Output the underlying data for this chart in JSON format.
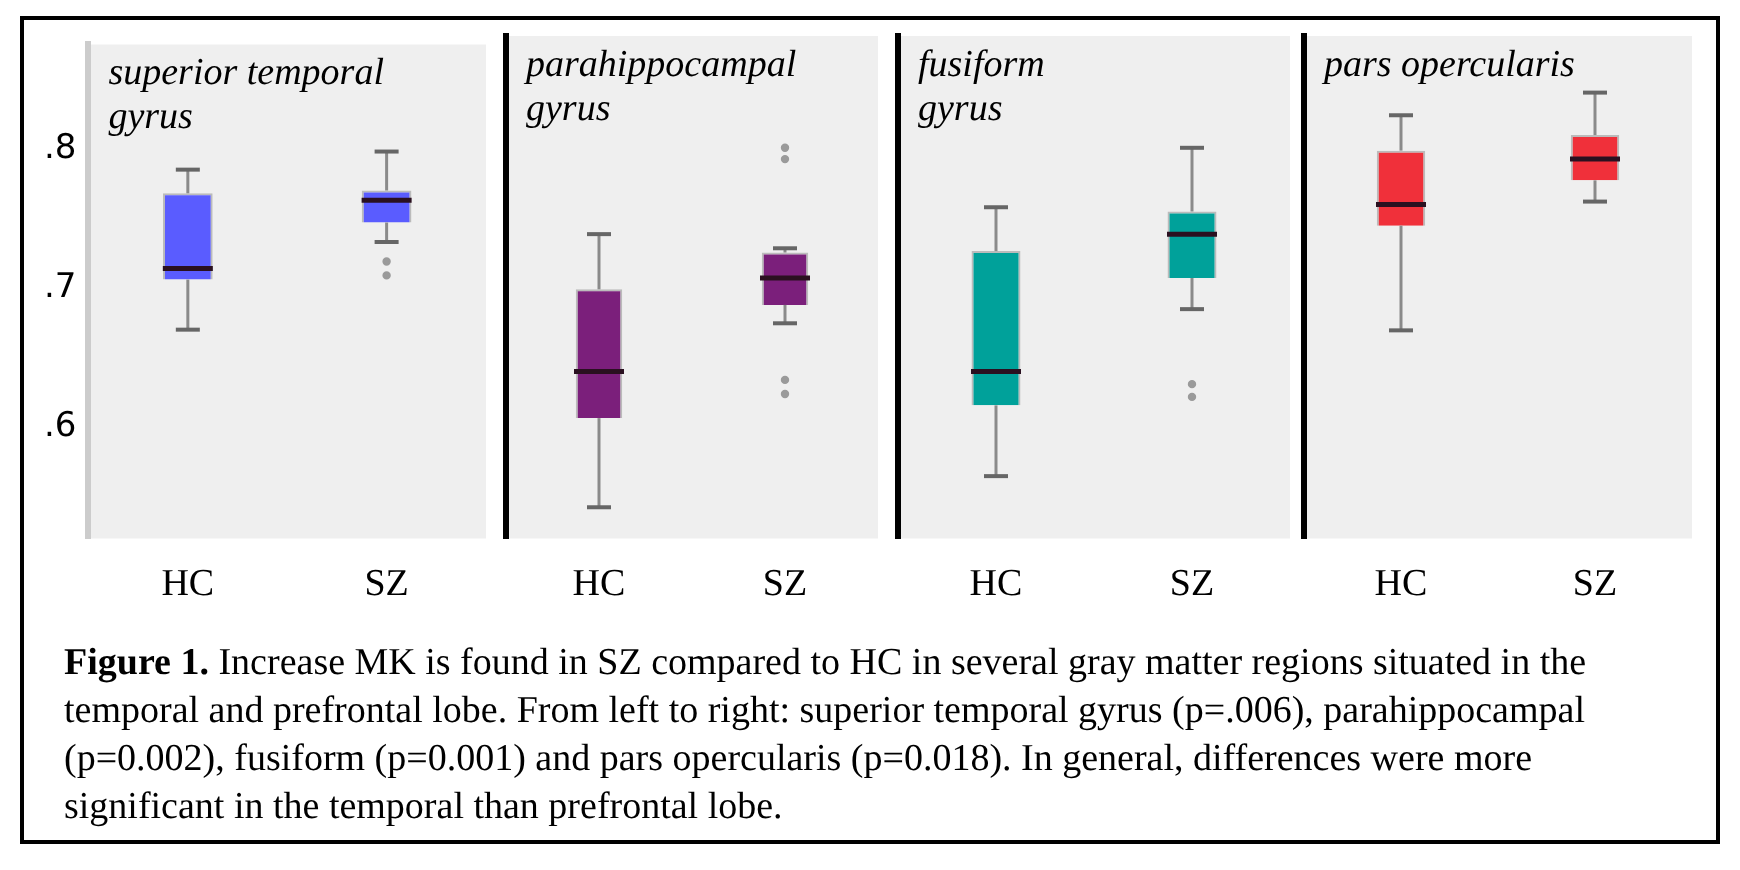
{
  "chart_data": [
    {
      "type": "box",
      "title": "superior temporal\ngyrus",
      "categories": [
        "HC",
        "SZ"
      ],
      "color": "#5a5cff",
      "boxes": [
        {
          "low": 0.67,
          "q1": 0.706,
          "median": 0.714,
          "q3": 0.768,
          "high": 0.785
        },
        {
          "low": 0.733,
          "q1": 0.747,
          "median": 0.763,
          "q3": 0.77,
          "high": 0.798,
          "outliers": [
            0.719,
            0.709
          ]
        }
      ],
      "ylim": [
        0.52,
        0.875
      ],
      "yticks": [
        {
          "value": 0.6,
          "label": ".6"
        },
        {
          "value": 0.7,
          "label": ".7"
        },
        {
          "value": 0.8,
          "label": ".8"
        }
      ],
      "grid": false,
      "annotations": [
        "Figure 1.",
        "Increase MK is found in SZ compared to HC in several gray matter regions situated in the temporal and prefrontal lobe. From left to right: superior temporal gyrus (p=.006), parahippocampal (p=0.002), fusiform (p=0.001) and pars opercularis (p=0.018). In general, differences were more significant in the temporal than prefrontal lobe."
      ]
    },
    {
      "type": "box",
      "title": "parahippocampal\ngyrus",
      "categories": [
        "HC",
        "SZ"
      ],
      "color": "#7b1f7b",
      "boxes": [
        {
          "low": 0.542,
          "q1": 0.605,
          "median": 0.638,
          "q3": 0.696,
          "high": 0.735
        },
        {
          "low": 0.672,
          "q1": 0.685,
          "median": 0.704,
          "q3": 0.722,
          "high": 0.725,
          "outliers": [
            0.796,
            0.788,
            0.632,
            0.622
          ]
        }
      ],
      "ylim": [
        0.52,
        0.875
      ],
      "tick_labels": "x",
      "grid": false
    },
    {
      "type": "box",
      "title": "fusiform\ngyrus",
      "categories": [
        "HC",
        "SZ"
      ],
      "color": "#00a19a",
      "boxes": [
        {
          "low": 0.564,
          "q1": 0.614,
          "median": 0.638,
          "q3": 0.723,
          "high": 0.754
        },
        {
          "low": 0.682,
          "q1": 0.704,
          "median": 0.735,
          "q3": 0.751,
          "high": 0.796,
          "outliers": [
            0.629,
            0.62
          ]
        }
      ],
      "ylim": [
        0.52,
        0.875
      ],
      "tick_labels": "x",
      "grid": false
    },
    {
      "type": "box",
      "title": "pars opercularis",
      "categories": [
        "HC",
        "SZ"
      ],
      "color": "#f0303a",
      "boxes": [
        {
          "low": 0.667,
          "q1": 0.741,
          "median": 0.756,
          "q3": 0.794,
          "high": 0.819
        },
        {
          "low": 0.758,
          "q1": 0.773,
          "median": 0.788,
          "q3": 0.805,
          "high": 0.835
        }
      ],
      "ylim": [
        0.52,
        0.875
      ],
      "tick_labels": "x",
      "grid": false
    }
  ]
}
